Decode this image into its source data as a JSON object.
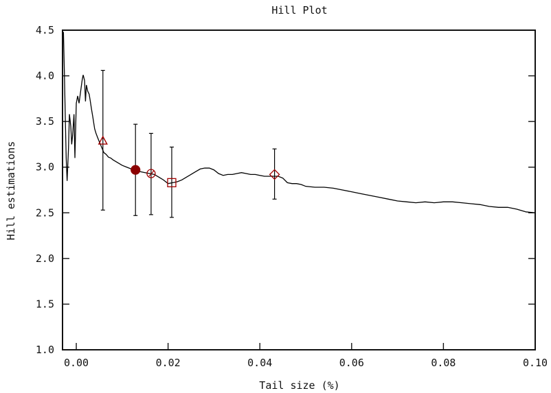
{
  "chart_data": {
    "type": "line",
    "title": "Hill Plot",
    "xlabel": "Tail size (%)",
    "ylabel": "Hill estimations",
    "xlim": [
      -0.003,
      0.1
    ],
    "ylim": [
      1.0,
      4.5
    ],
    "xticks": [
      0.0,
      0.02,
      0.04,
      0.06,
      0.08,
      0.1
    ],
    "xtick_labels": [
      "0.00",
      "0.02",
      "0.04",
      "0.06",
      "0.08",
      "0.10"
    ],
    "yticks": [
      1.0,
      1.5,
      2.0,
      2.5,
      3.0,
      3.5,
      4.0,
      4.5
    ],
    "ytick_labels": [
      "1.0",
      "1.5",
      "2.0",
      "2.5",
      "3.0",
      "3.5",
      "4.0",
      "4.5"
    ],
    "grid": false,
    "series": [
      {
        "values": [
          [
            -0.0028,
            4.48
          ],
          [
            -0.0026,
            4.05
          ],
          [
            -0.0024,
            3.55
          ],
          [
            -0.0022,
            3.1
          ],
          [
            -0.002,
            2.85
          ],
          [
            -0.0017,
            3.2
          ],
          [
            -0.0015,
            3.58
          ],
          [
            -0.0012,
            3.45
          ],
          [
            -0.001,
            3.25
          ],
          [
            -0.0008,
            3.35
          ],
          [
            -0.0005,
            3.58
          ],
          [
            -0.0003,
            3.1
          ],
          [
            0.0,
            3.7
          ],
          [
            0.0003,
            3.78
          ],
          [
            0.0006,
            3.7
          ],
          [
            0.001,
            3.85
          ],
          [
            0.0013,
            3.96
          ],
          [
            0.0015,
            4.01
          ],
          [
            0.0018,
            3.95
          ],
          [
            0.002,
            3.72
          ],
          [
            0.0022,
            3.9
          ],
          [
            0.0025,
            3.83
          ],
          [
            0.0028,
            3.8
          ],
          [
            0.003,
            3.74
          ],
          [
            0.0033,
            3.64
          ],
          [
            0.0036,
            3.55
          ],
          [
            0.004,
            3.42
          ],
          [
            0.0043,
            3.37
          ],
          [
            0.0046,
            3.33
          ],
          [
            0.005,
            3.28
          ],
          [
            0.0055,
            3.22
          ],
          [
            0.006,
            3.16
          ],
          [
            0.0065,
            3.14
          ],
          [
            0.007,
            3.11
          ],
          [
            0.0075,
            3.1
          ],
          [
            0.008,
            3.08
          ],
          [
            0.009,
            3.05
          ],
          [
            0.01,
            3.02
          ],
          [
            0.011,
            3.0
          ],
          [
            0.012,
            2.98
          ],
          [
            0.013,
            2.96
          ],
          [
            0.014,
            2.95
          ],
          [
            0.015,
            2.94
          ],
          [
            0.016,
            2.93
          ],
          [
            0.017,
            2.92
          ],
          [
            0.018,
            2.89
          ],
          [
            0.019,
            2.86
          ],
          [
            0.02,
            2.82
          ],
          [
            0.021,
            2.83
          ],
          [
            0.022,
            2.84
          ],
          [
            0.023,
            2.86
          ],
          [
            0.024,
            2.89
          ],
          [
            0.025,
            2.92
          ],
          [
            0.026,
            2.95
          ],
          [
            0.027,
            2.98
          ],
          [
            0.028,
            2.99
          ],
          [
            0.029,
            2.99
          ],
          [
            0.03,
            2.97
          ],
          [
            0.031,
            2.93
          ],
          [
            0.032,
            2.91
          ],
          [
            0.033,
            2.92
          ],
          [
            0.034,
            2.92
          ],
          [
            0.035,
            2.93
          ],
          [
            0.036,
            2.94
          ],
          [
            0.037,
            2.93
          ],
          [
            0.038,
            2.92
          ],
          [
            0.039,
            2.92
          ],
          [
            0.04,
            2.91
          ],
          [
            0.041,
            2.9
          ],
          [
            0.042,
            2.9
          ],
          [
            0.043,
            2.9
          ],
          [
            0.044,
            2.9
          ],
          [
            0.045,
            2.88
          ],
          [
            0.046,
            2.83
          ],
          [
            0.047,
            2.82
          ],
          [
            0.048,
            2.82
          ],
          [
            0.049,
            2.81
          ],
          [
            0.05,
            2.79
          ],
          [
            0.052,
            2.78
          ],
          [
            0.054,
            2.78
          ],
          [
            0.056,
            2.77
          ],
          [
            0.058,
            2.75
          ],
          [
            0.06,
            2.73
          ],
          [
            0.062,
            2.71
          ],
          [
            0.064,
            2.69
          ],
          [
            0.066,
            2.67
          ],
          [
            0.068,
            2.65
          ],
          [
            0.07,
            2.63
          ],
          [
            0.072,
            2.62
          ],
          [
            0.074,
            2.61
          ],
          [
            0.076,
            2.62
          ],
          [
            0.078,
            2.61
          ],
          [
            0.08,
            2.62
          ],
          [
            0.082,
            2.62
          ],
          [
            0.084,
            2.61
          ],
          [
            0.086,
            2.6
          ],
          [
            0.088,
            2.59
          ],
          [
            0.09,
            2.57
          ],
          [
            0.092,
            2.56
          ],
          [
            0.094,
            2.56
          ],
          [
            0.096,
            2.54
          ],
          [
            0.098,
            2.51
          ],
          [
            0.1,
            2.5
          ]
        ]
      }
    ],
    "markers": [
      {
        "shape": "triangle",
        "x": 0.0058,
        "y": 3.29,
        "lower": 2.53,
        "upper": 4.06,
        "filled": false,
        "color": "#a00000"
      },
      {
        "shape": "circle-filled",
        "x": 0.0129,
        "y": 2.97,
        "lower": 2.47,
        "upper": 3.47,
        "filled": true,
        "color": "#8b0000"
      },
      {
        "shape": "circle-slash",
        "x": 0.0163,
        "y": 2.93,
        "lower": 2.48,
        "upper": 3.37,
        "filled": false,
        "color": "#a00000"
      },
      {
        "shape": "square",
        "x": 0.0208,
        "y": 2.83,
        "lower": 2.45,
        "upper": 3.22,
        "filled": false,
        "color": "#a00000"
      },
      {
        "shape": "diamond",
        "x": 0.0432,
        "y": 2.92,
        "lower": 2.65,
        "upper": 3.2,
        "filled": false,
        "color": "#a00000"
      }
    ]
  }
}
